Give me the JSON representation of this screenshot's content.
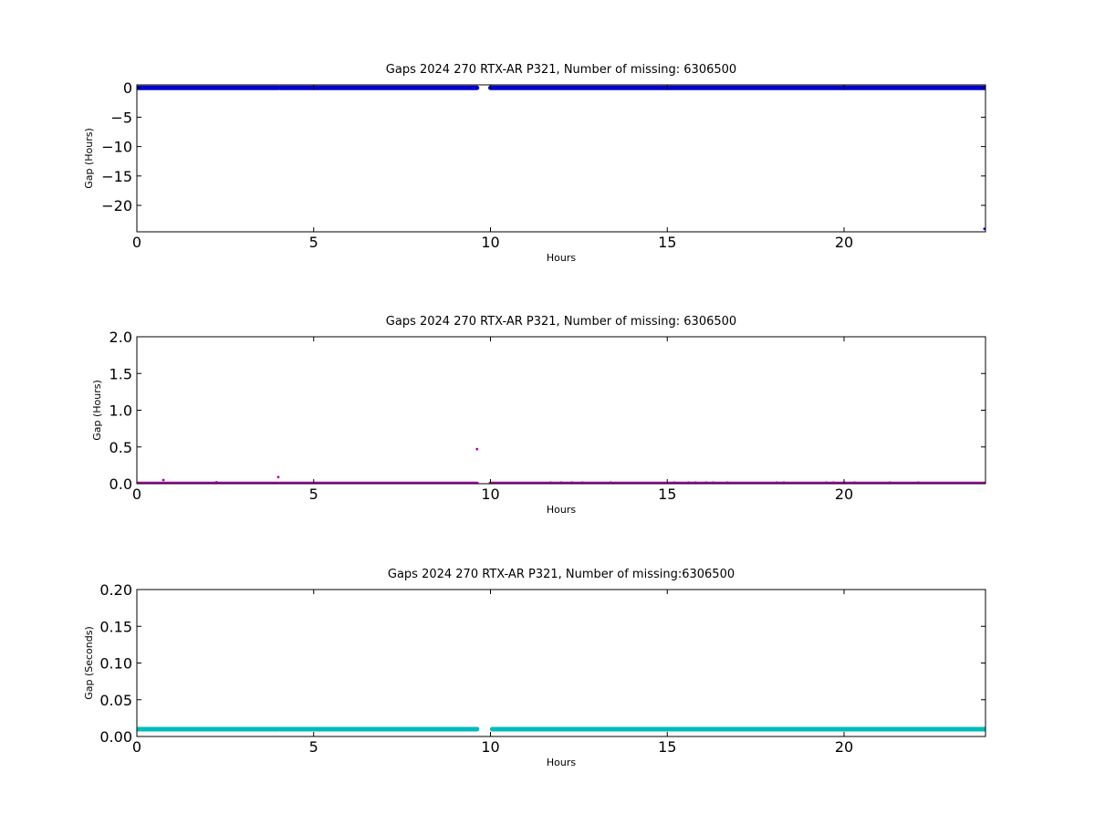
{
  "chart_data": [
    {
      "type": "scatter",
      "title": "Gaps 2024 270 RTX-AR  P321, Number of missing: 6306500",
      "xlabel": "Hours",
      "ylabel": "Gap (Hours)",
      "xlim": [
        0,
        24
      ],
      "ylim": [
        -24.5,
        0.5
      ],
      "xticks": [
        0,
        5,
        10,
        15,
        20
      ],
      "xtick_labels": [
        "0",
        "5",
        "10",
        "15",
        "20"
      ],
      "yticks": [
        0,
        -5,
        -10,
        -15,
        -20
      ],
      "ytick_labels": [
        "0",
        "−5",
        "−10",
        "−15",
        "−20"
      ],
      "grid": false,
      "color": "#0000cc",
      "series": [
        {
          "bands": [
            {
              "x_start": 0.0,
              "x_end": 4.0,
              "y": 0.0
            },
            {
              "x_start": 4.05,
              "x_end": 9.62,
              "y": 0.0
            },
            {
              "x_start": 10.0,
              "x_end": 24.0,
              "y": 0.0
            }
          ],
          "points": [
            {
              "x": 23.97,
              "y": -24.0
            }
          ]
        }
      ]
    },
    {
      "type": "scatter",
      "title": "Gaps 2024 270 RTX-AR  P321, Number of missing: 6306500",
      "xlabel": "Hours",
      "ylabel": "Gap (Hours)",
      "xlim": [
        0,
        24
      ],
      "ylim": [
        0,
        2.0
      ],
      "xticks": [
        0,
        5,
        10,
        15,
        20
      ],
      "xtick_labels": [
        "0",
        "5",
        "10",
        "15",
        "20"
      ],
      "yticks": [
        0,
        0.5,
        1.0,
        1.5,
        2.0
      ],
      "ytick_labels": [
        "0.0",
        "0.5",
        "1.0",
        "1.5",
        "2.0"
      ],
      "grid": false,
      "color": "#aa00aa",
      "series": [
        {
          "bands": [
            {
              "x_start": 0.0,
              "x_end": 4.0,
              "y": 0.003
            },
            {
              "x_start": 4.05,
              "x_end": 9.62,
              "y": 0.003
            },
            {
              "x_start": 10.0,
              "x_end": 24.0,
              "y": 0.003
            }
          ],
          "points": [
            {
              "x": 0.75,
              "y": 0.05
            },
            {
              "x": 2.25,
              "y": 0.02
            },
            {
              "x": 4.0,
              "y": 0.09
            },
            {
              "x": 9.62,
              "y": 0.47
            },
            {
              "x": 11.7,
              "y": 0.015
            },
            {
              "x": 12.0,
              "y": 0.015
            },
            {
              "x": 12.3,
              "y": 0.015
            },
            {
              "x": 12.6,
              "y": 0.015
            },
            {
              "x": 13.4,
              "y": 0.015
            },
            {
              "x": 15.2,
              "y": 0.015
            },
            {
              "x": 15.6,
              "y": 0.015
            },
            {
              "x": 15.8,
              "y": 0.015
            },
            {
              "x": 16.1,
              "y": 0.015
            },
            {
              "x": 16.3,
              "y": 0.015
            },
            {
              "x": 16.7,
              "y": 0.015
            },
            {
              "x": 18.1,
              "y": 0.015
            },
            {
              "x": 18.3,
              "y": 0.015
            },
            {
              "x": 19.5,
              "y": 0.015
            },
            {
              "x": 19.7,
              "y": 0.015
            },
            {
              "x": 20.0,
              "y": 0.015
            },
            {
              "x": 20.3,
              "y": 0.015
            },
            {
              "x": 21.3,
              "y": 0.015
            },
            {
              "x": 22.1,
              "y": 0.015
            }
          ]
        }
      ]
    },
    {
      "type": "scatter",
      "title": "Gaps 2024 270 RTX-AR  P321, Number of missing:6306500",
      "xlabel": "Hours",
      "ylabel": "Gap (Seconds)",
      "xlim": [
        0,
        24
      ],
      "ylim": [
        0,
        0.2
      ],
      "xticks": [
        0,
        5,
        10,
        15,
        20
      ],
      "xtick_labels": [
        "0",
        "5",
        "10",
        "15",
        "20"
      ],
      "yticks": [
        0,
        0.05,
        0.1,
        0.15,
        0.2
      ],
      "ytick_labels": [
        "0.00",
        "0.05",
        "0.10",
        "0.15",
        "0.20"
      ],
      "grid": false,
      "color": "#00bbbb",
      "series": [
        {
          "bands": [
            {
              "x_start": 0.0,
              "x_end": 4.0,
              "y": 0.01
            },
            {
              "x_start": 4.05,
              "x_end": 9.62,
              "y": 0.01
            },
            {
              "x_start": 10.05,
              "x_end": 24.0,
              "y": 0.01
            }
          ],
          "points": []
        }
      ]
    }
  ]
}
